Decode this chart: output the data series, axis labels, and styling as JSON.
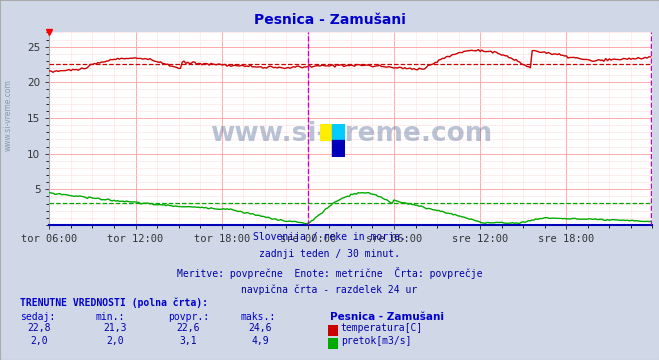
{
  "title": "Pesnica - Zamušani",
  "title_color": "#0000cc",
  "bg_color": "#d0d8e8",
  "plot_bg_color": "#ffffff",
  "xlabel_ticks": [
    "tor 06:00",
    "tor 12:00",
    "tor 18:00",
    "sre 00:00",
    "sre 06:00",
    "sre 12:00",
    "sre 18:00"
  ],
  "ylim": [
    0,
    27
  ],
  "xlim_max": 336,
  "temp_avg": 22.6,
  "flow_avg": 3.1,
  "temp_color": "#cc0000",
  "flow_color": "#00aa00",
  "vline_color": "#cc00cc",
  "grid_color_major": "#ffaaaa",
  "grid_color_minor": "#ffdddd",
  "subtitle_lines": [
    "Slovenija / reke in morje.",
    "zadnji teden / 30 minut.",
    "Meritve: povprečne  Enote: metrične  Črta: povprečje",
    "navpična črta - razdelek 24 ur"
  ],
  "subtitle_color": "#0000aa",
  "table_header_color": "#0000cc",
  "table_value_color": "#0000aa",
  "watermark": "www.si-vreme.com",
  "watermark_color": "#1a3a7a",
  "left_label": "www.si-vreme.com",
  "left_label_color": "#8899aa",
  "n_points": 336,
  "temp_vals": [
    "22,8",
    "21,3",
    "22,6",
    "24,6"
  ],
  "flow_vals": [
    "2,0",
    "2,0",
    "3,1",
    "4,9"
  ],
  "headers": [
    "sedaj:",
    "min.:",
    "povpr.:",
    "maks.:"
  ],
  "station_name": "Pesnica - Zamušani",
  "legend_temp": "temperatura[C]",
  "legend_flow": "pretok[m3/s]",
  "table_title": "TRENUTNE VREDNOSTI (polna črta):"
}
